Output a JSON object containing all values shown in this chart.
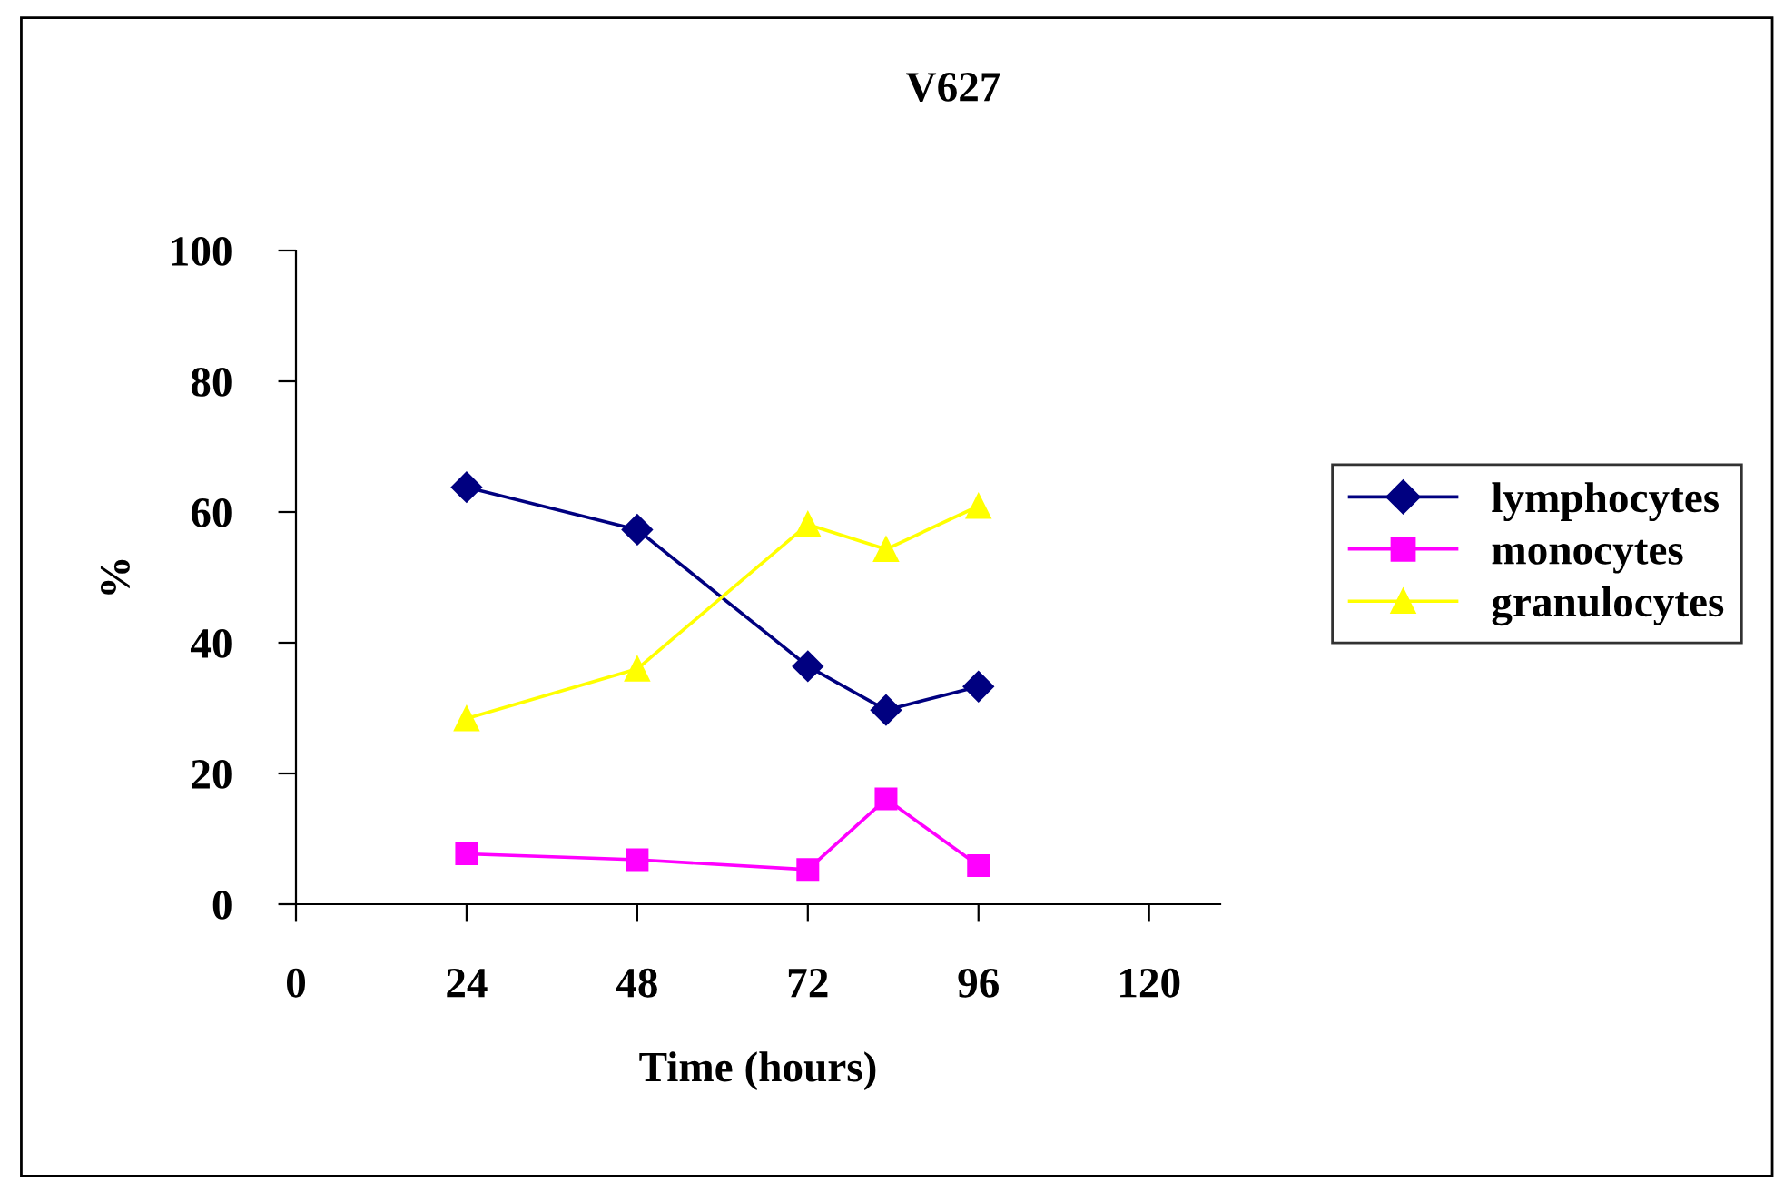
{
  "chart_data": {
    "type": "line",
    "title": "V627",
    "xlabel": "Time (hours)",
    "ylabel": "%",
    "x": [
      24,
      48,
      72,
      83,
      96
    ],
    "series": [
      {
        "name": "lymphocytes",
        "color": "#000080",
        "marker": "diamond",
        "values": [
          63.8,
          57.3,
          36.4,
          29.7,
          33.3
        ]
      },
      {
        "name": "monocytes",
        "color": "#ff00ff",
        "marker": "square",
        "values": [
          7.7,
          6.8,
          5.3,
          16.1,
          5.9
        ]
      },
      {
        "name": "granulocytes",
        "color": "#ffff00",
        "marker": "triangle",
        "values": [
          28.4,
          36.0,
          58.1,
          54.3,
          60.9
        ]
      }
    ],
    "xlim": [
      0,
      130
    ],
    "xticks": [
      0,
      24,
      48,
      72,
      96,
      120
    ],
    "ylim": [
      0,
      100
    ],
    "yticks": [
      0,
      20,
      40,
      60,
      80,
      100
    ],
    "grid": false,
    "legend": "right",
    "line_style": "solid"
  }
}
